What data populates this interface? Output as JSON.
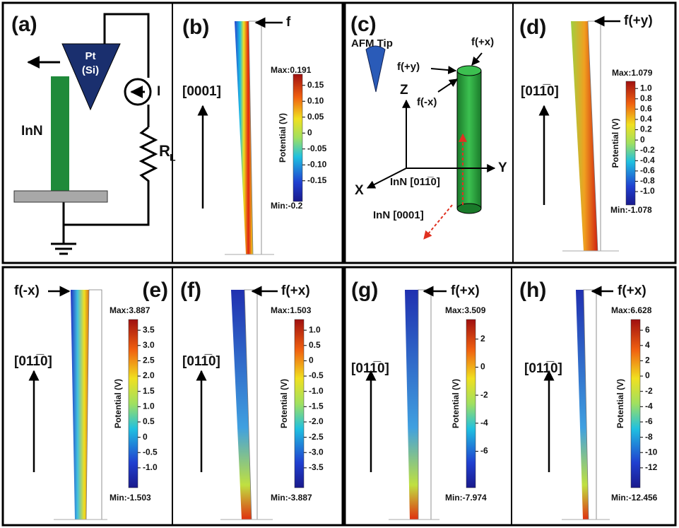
{
  "panel_a": {
    "label": "(a)",
    "tip_top": "Pt",
    "tip_bottom": "(Si)",
    "current": "I",
    "wire": "InN",
    "resistor": "R",
    "resistor_sub": "L"
  },
  "panel_c": {
    "label": "(c)",
    "tip": "AFM Tip",
    "f_px": "f(+x)",
    "f_py": "f(+y)",
    "f_mx": "f(-x)",
    "z": "Z",
    "y": "Y",
    "x": "X",
    "axis_wire": "InN [011̅0]",
    "axis_growth": "InN [0001]"
  },
  "simulations": [
    {
      "label": "(b)",
      "force": "f",
      "direction": "[0001]",
      "colorbar": {
        "max": "Max:0.191",
        "min": "Min:-0.2",
        "title": "Potential (V)",
        "ticks": [
          "0.15",
          "0.10",
          "0.05",
          "0",
          "-0.05",
          "-0.10",
          "-0.15"
        ]
      }
    },
    {
      "label": "(d)",
      "force": "f(+y)",
      "direction": "[011̅0]",
      "colorbar": {
        "max": "Max:1.079",
        "min": "Min:-1.078",
        "title": "Potential (V)",
        "ticks": [
          "1.0",
          "0.8",
          "0.6",
          "0.4",
          "0.2",
          "0",
          "-0.2",
          "-0.4",
          "-0.6",
          "-0.8",
          "-1.0"
        ]
      }
    },
    {
      "label": "(e)",
      "force": "f(-x)",
      "direction": "[011̅0]",
      "colorbar": {
        "max": "Max:3.887",
        "min": "Min:-1.503",
        "title": "Potential (V)",
        "ticks": [
          "3.5",
          "3.0",
          "2.5",
          "2.0",
          "1.5",
          "1.0",
          "0.5",
          "0",
          "-0.5",
          "-1.0"
        ]
      }
    },
    {
      "label": "(f)",
      "force": "f(+x)",
      "direction": "[011̅0]",
      "colorbar": {
        "max": "Max:1.503",
        "min": "Min:-3.887",
        "title": "Potential (V)",
        "ticks": [
          "1.0",
          "0.5",
          "0",
          "-0.5",
          "-1.0",
          "-1.5",
          "-2.0",
          "-2.5",
          "-3.0",
          "-3.5"
        ]
      }
    },
    {
      "label": "(g)",
      "force": "f(+x)",
      "direction": "[011̅0]",
      "colorbar": {
        "max": "Max:3.509",
        "min": "Min:-7.974",
        "title": "Potential (V)",
        "ticks": [
          "2",
          "0",
          "-2",
          "-4",
          "-6"
        ]
      }
    },
    {
      "label": "(h)",
      "force": "f(+x)",
      "direction": "[011̅0]",
      "colorbar": {
        "max": "Max:6.628",
        "min": "Min:-12.456",
        "title": "Potential (V)",
        "ticks": [
          "6",
          "4",
          "2",
          "0",
          "-2",
          "-4",
          "-6",
          "-8",
          "-10",
          "-12"
        ]
      }
    }
  ]
}
